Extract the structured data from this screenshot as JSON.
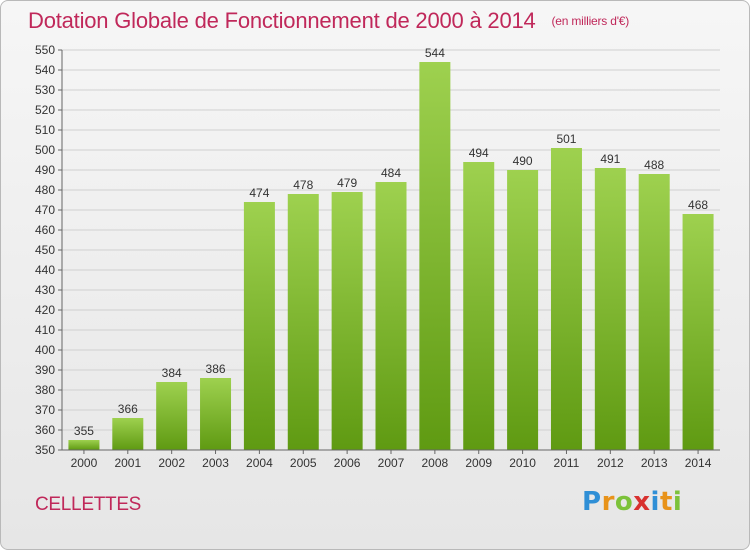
{
  "header": {
    "title": "Dotation Globale de Fonctionnement de 2000 à 2014",
    "unit": "(en milliers d'€)"
  },
  "footer": {
    "place": "CELLETTES",
    "brand_letters": [
      "P",
      "r",
      "o",
      "x",
      "i",
      "t",
      "i"
    ],
    "brand_colors": [
      "#2f8fd6",
      "#e8931a",
      "#7cc23a",
      "#d8312f",
      "#2f8fd6",
      "#e8931a",
      "#7cc23a"
    ]
  },
  "chart_data": {
    "type": "bar",
    "title": "Dotation Globale de Fonctionnement de 2000 à 2014",
    "categories": [
      "2000",
      "2001",
      "2002",
      "2003",
      "2004",
      "2005",
      "2006",
      "2007",
      "2008",
      "2009",
      "2010",
      "2011",
      "2012",
      "2013",
      "2014"
    ],
    "values": [
      355,
      366,
      384,
      386,
      474,
      478,
      479,
      484,
      544,
      494,
      490,
      501,
      491,
      488,
      468
    ],
    "ylim": [
      350,
      550
    ],
    "yticks": [
      350,
      360,
      370,
      380,
      390,
      400,
      410,
      420,
      430,
      440,
      450,
      460,
      470,
      480,
      490,
      500,
      510,
      520,
      530,
      540,
      550
    ],
    "grid": true,
    "bar_color_top": "#9ed14f",
    "bar_color_bottom": "#5f9a12"
  }
}
